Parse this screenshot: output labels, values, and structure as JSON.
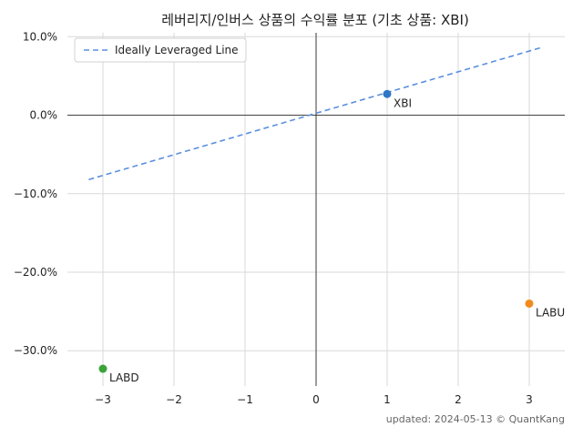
{
  "chart_data": {
    "type": "scatter",
    "title": "레버리지/인버스 상품의 수익률 분포 (기초 상품: XBI)",
    "xlabel": "",
    "ylabel": "",
    "xlim": [
      -3.5,
      3.5
    ],
    "ylim": [
      -34.5,
      10.5
    ],
    "x_ticks": [
      -3,
      -2,
      -1,
      0,
      1,
      2,
      3
    ],
    "x_tick_labels": [
      "−3",
      "−2",
      "−1",
      "0",
      "1",
      "2",
      "3"
    ],
    "y_ticks": [
      10,
      0,
      -10,
      -20,
      -30
    ],
    "y_tick_labels": [
      "10.0%",
      "0.0%",
      "−10.0%",
      "−20.0%",
      "−30.0%"
    ],
    "grid": true,
    "legend": {
      "placement": "top-left",
      "entries": [
        "Ideally Leveraged Line"
      ]
    },
    "line": {
      "name": "Ideally Leveraged Line",
      "x": [
        -3.2,
        3.2
      ],
      "y": [
        -8.2,
        8.7
      ],
      "color": "#5b8fe0",
      "style": "dashed"
    },
    "points": [
      {
        "label": "XBI",
        "x": 1,
        "y": 2.7,
        "color": "#2f77c6"
      },
      {
        "label": "LABU",
        "x": 3,
        "y": -24.0,
        "color": "#f28a1d"
      },
      {
        "label": "LABD",
        "x": -3,
        "y": -32.3,
        "color": "#3aa33a"
      }
    ]
  },
  "footer": "updated: 2024-05-13 © QuantKang"
}
